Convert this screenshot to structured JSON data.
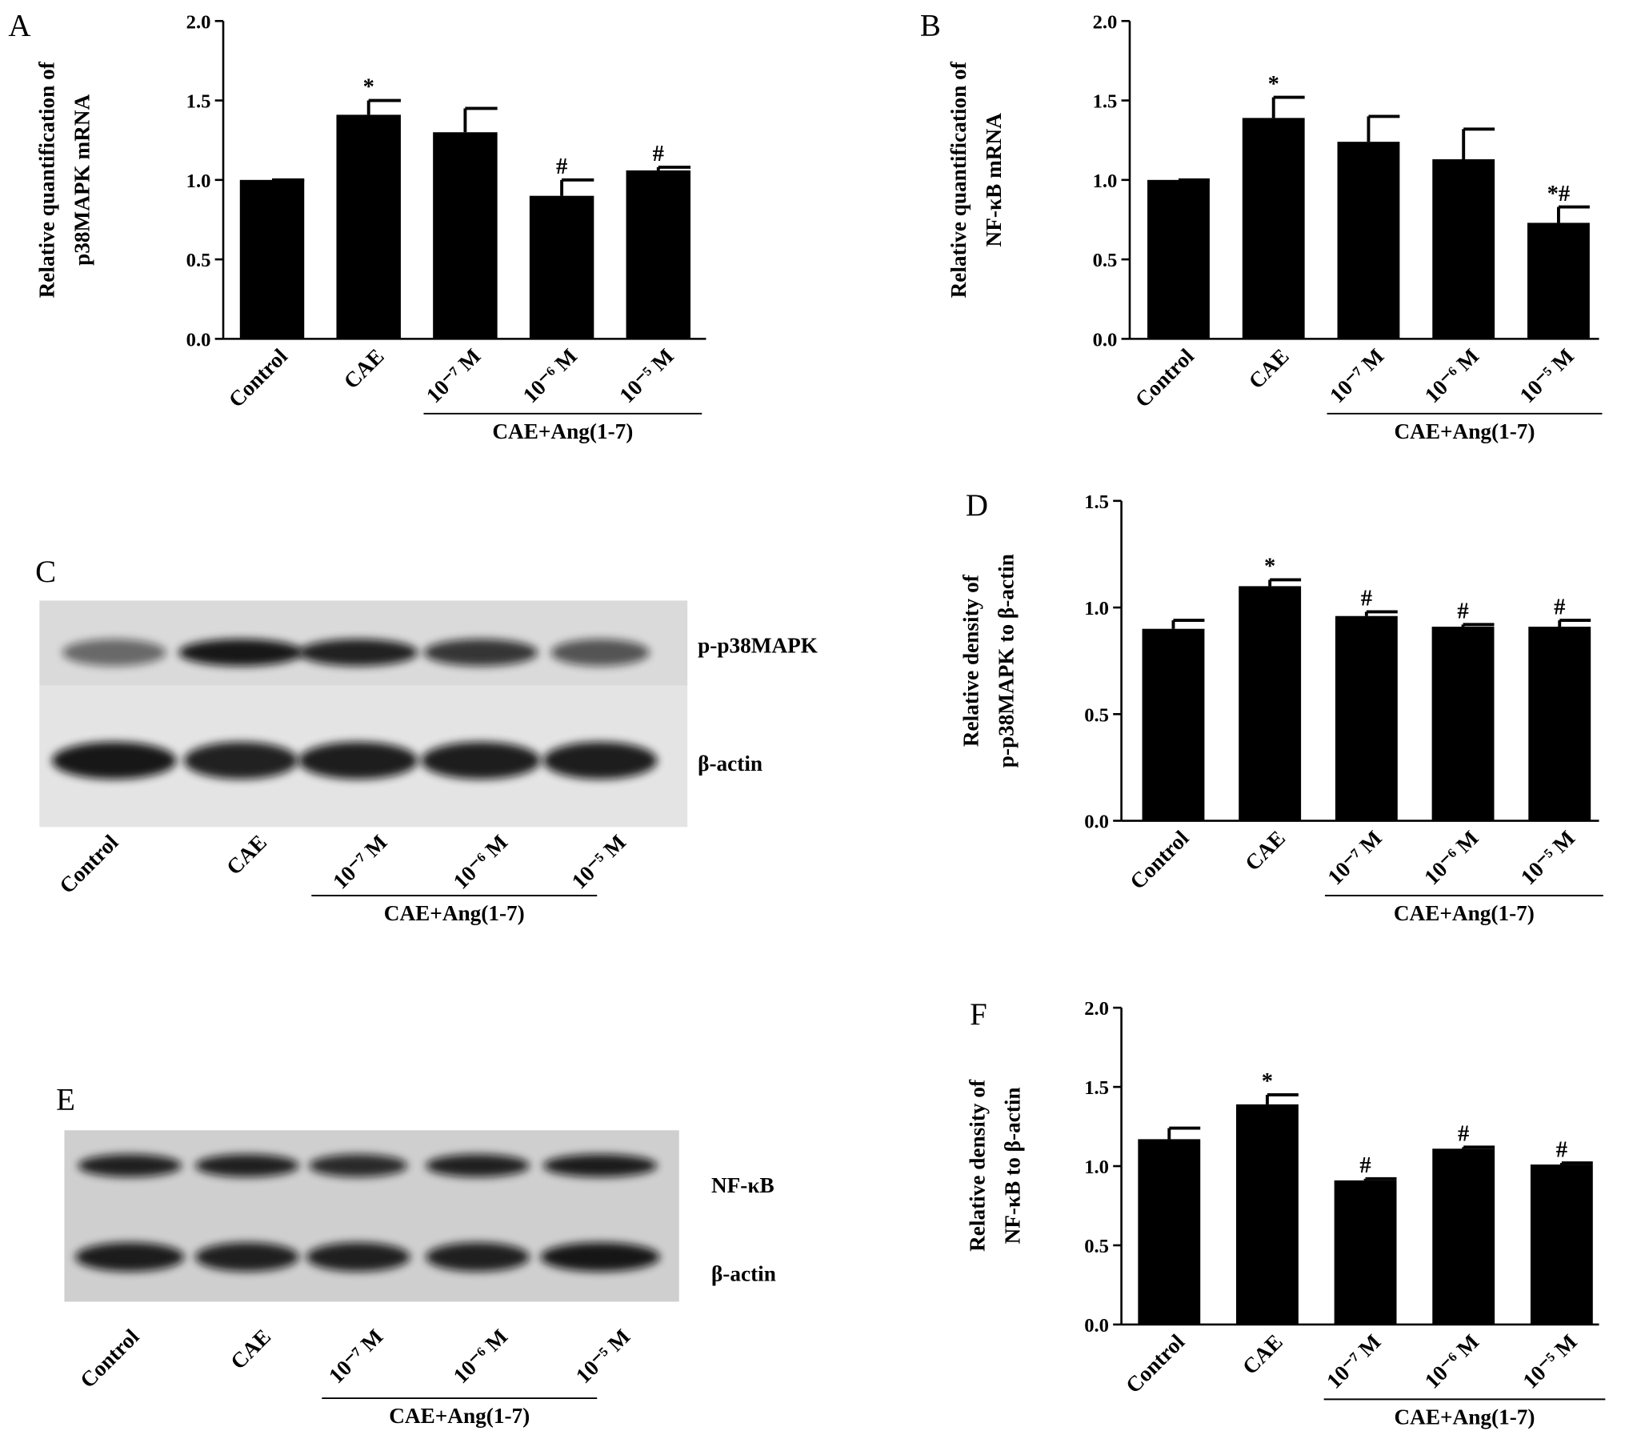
{
  "chart_data": [
    {
      "type": "bar",
      "panel": "A",
      "ylabel": [
        "Relative quantification of",
        "p38MAPK mRNA"
      ],
      "categories": [
        "Control",
        "CAE",
        "10⁻⁷ M",
        "10⁻⁶ M",
        "10⁻⁵ M"
      ],
      "values": [
        1.0,
        1.41,
        1.3,
        0.9,
        1.06
      ],
      "errors": [
        0,
        0.09,
        0.15,
        0.1,
        0.02
      ],
      "color": "#000000",
      "annotations": [
        {
          "category": "CAE",
          "label": "*"
        },
        {
          "category": "10⁻⁶ M",
          "label": "#"
        },
        {
          "category": "10⁻⁵ M",
          "label": "#"
        }
      ],
      "group": {
        "label": "CAE+Ang(1-7)",
        "from": "10⁻⁷ M",
        "to": "10⁻⁵ M"
      },
      "ylim": [
        0,
        2
      ],
      "yticks": [
        {
          "value": 0,
          "label": "0.0"
        },
        0.5,
        {
          "value": 1,
          "label": "1.0"
        },
        1.5,
        {
          "value": 2,
          "label": "2.0"
        }
      ]
    },
    {
      "type": "bar",
      "panel": "B",
      "ylabel": [
        "Relative quantification of",
        "NF-κB mRNA"
      ],
      "categories": [
        "Control",
        "CAE",
        "10⁻⁷ M",
        "10⁻⁶ M",
        "10⁻⁵ M"
      ],
      "values": [
        1.0,
        1.39,
        1.24,
        1.13,
        0.73
      ],
      "errors": [
        0,
        0.13,
        0.16,
        0.19,
        0.1
      ],
      "color": "#000000",
      "annotations": [
        {
          "category": "CAE",
          "label": "*"
        },
        {
          "category": "10⁻⁵ M",
          "label": "*#"
        }
      ],
      "group": {
        "label": "CAE+Ang(1-7)",
        "from": "10⁻⁷ M",
        "to": "10⁻⁵ M"
      },
      "ylim": [
        0,
        2
      ],
      "yticks": [
        {
          "value": 0,
          "label": "0.0"
        },
        0.5,
        {
          "value": 1,
          "label": "1.0"
        },
        1.5,
        {
          "value": 2,
          "label": "2.0"
        }
      ]
    },
    {
      "type": "bar",
      "panel": "D",
      "ylabel": [
        "Relative density of",
        "p-p38MAPK to β-actin"
      ],
      "categories": [
        "Control",
        "CAE",
        "10⁻⁷ M",
        "10⁻⁶ M",
        "10⁻⁵ M"
      ],
      "values": [
        0.9,
        1.1,
        0.96,
        0.91,
        0.91
      ],
      "errors": [
        0.04,
        0.03,
        0.02,
        0.01,
        0.03
      ],
      "color": "#000000",
      "annotations": [
        {
          "category": "CAE",
          "label": "*"
        },
        {
          "category": "10⁻⁷ M",
          "label": "#"
        },
        {
          "category": "10⁻⁶ M",
          "label": "#"
        },
        {
          "category": "10⁻⁵ M",
          "label": "#"
        }
      ],
      "group": {
        "label": "CAE+Ang(1-7)",
        "from": "10⁻⁷ M",
        "to": "10⁻⁵ M"
      },
      "ylim": [
        0,
        1.5
      ],
      "yticks": [
        {
          "value": 0,
          "label": "0.0"
        },
        0.5,
        {
          "value": 1,
          "label": "1.0"
        },
        1.5
      ]
    },
    {
      "type": "bar",
      "panel": "F",
      "ylabel": [
        "Relative density of",
        "NF-κB to β-actin"
      ],
      "categories": [
        "Control",
        "CAE",
        "10⁻⁷ M",
        "10⁻⁶ M",
        "10⁻⁵ M"
      ],
      "values": [
        1.17,
        1.39,
        0.91,
        1.11,
        1.01
      ],
      "errors": [
        0.07,
        0.06,
        0.01,
        0.01,
        0.01
      ],
      "color": "#000000",
      "annotations": [
        {
          "category": "CAE",
          "label": "*"
        },
        {
          "category": "10⁻⁷ M",
          "label": "#"
        },
        {
          "category": "10⁻⁶ M",
          "label": "#"
        },
        {
          "category": "10⁻⁵ M",
          "label": "#"
        }
      ],
      "group": {
        "label": "CAE+Ang(1-7)",
        "from": "10⁻⁷ M",
        "to": "10⁻⁵ M"
      },
      "ylim": [
        0,
        2
      ],
      "yticks": [
        {
          "value": 0,
          "label": "0.0"
        },
        0.5,
        {
          "value": 1,
          "label": "1.0"
        },
        1.5,
        {
          "value": 2,
          "label": "2.0"
        }
      ]
    }
  ],
  "blots": [
    {
      "panel": "C",
      "bands": [
        "p-p38MAPK",
        "β-actin"
      ],
      "categories": [
        "Control",
        "CAE",
        "10⁻⁷ M",
        "10⁻⁶ M",
        "10⁻⁵ M"
      ],
      "group": {
        "label": "CAE+Ang(1-7)",
        "from": "10⁻⁷ M",
        "to": "10⁻⁵ M"
      }
    },
    {
      "panel": "E",
      "bands": [
        "NF-κB",
        "β-actin"
      ],
      "categories": [
        "Control",
        "CAE",
        "10⁻⁷ M",
        "10⁻⁶ M",
        "10⁻⁵ M"
      ],
      "group": {
        "label": "CAE+Ang(1-7)",
        "from": "10⁻⁷ M",
        "to": "10⁻⁵ M"
      }
    }
  ]
}
